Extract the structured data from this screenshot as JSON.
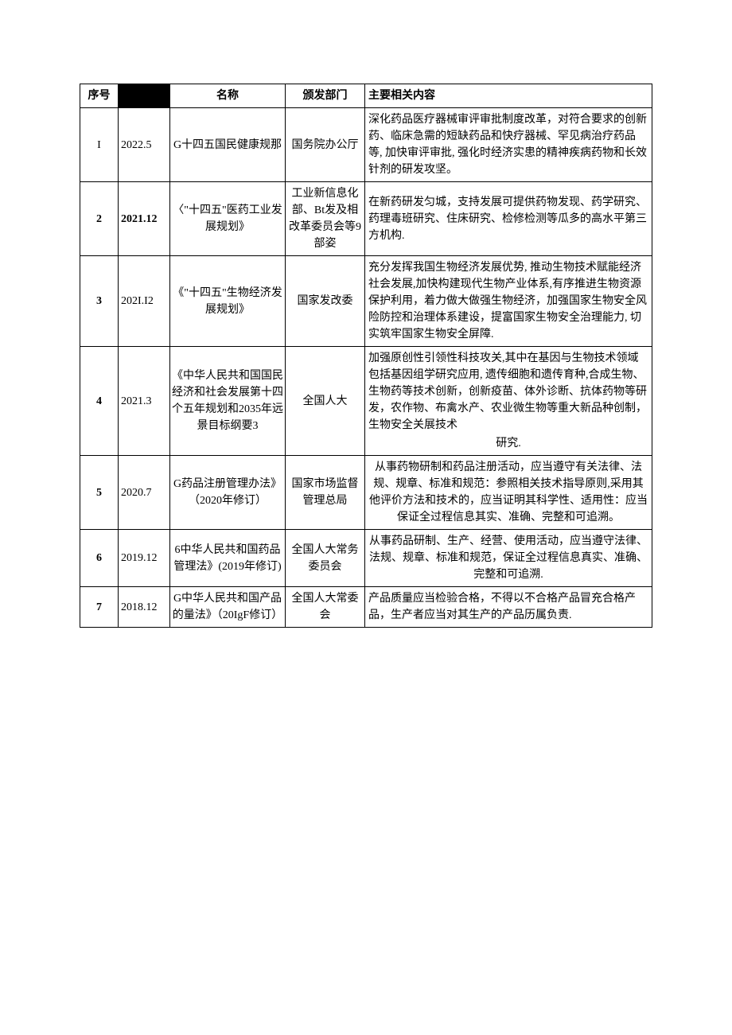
{
  "table": {
    "headers": {
      "seq": "序号",
      "date": "",
      "name": "名称",
      "dept": "颁发部门",
      "content": "主要相关内容"
    },
    "columns_widths": [
      48,
      65,
      145,
      100,
      360
    ],
    "border_color": "#000000",
    "font_family": "SimSun",
    "font_size": 14,
    "header_blacked_column_index": 1,
    "rows": [
      {
        "seq": "I",
        "seq_bold": false,
        "date": "2022.5",
        "date_bold": false,
        "name": "G十四五国民健康规那",
        "dept": "国务院办公厅",
        "content": "深化药品医疗器械审评审批制度改革，对符合要求的创新药、临床急需的短缺药品和快疗器械、罕见病治疗药品等, 加快审评审批, 强化时经济实患的精神疾病药物和长效针剂的研发攻坚。"
      },
      {
        "seq": "2",
        "seq_bold": true,
        "date": "2021.12",
        "date_bold": true,
        "name": "〈\"十四五\"医药工业发展规划》",
        "dept": "工业新信息化部、Bt发及相改革委员会等9部姿",
        "content": "在新药研发匀城，支持发展可提供药物发现、药学研究、药理毒班研究、住床研究、检修检测等瓜多的高水平第三方机构."
      },
      {
        "seq": "3",
        "seq_bold": true,
        "date": "202I.I2",
        "date_bold": false,
        "name": "《\"十四五\"生物经济发展规划》",
        "dept": "国家发改委",
        "content": "充分发挥我国生物经济发展优势, 推动生物技术赋能经济社会发展,加快构建现代生物产业体系,有序推进生物资源保护利用，着力做大做强生物经济，加强国家生物安全风险防控和治理体系建设，提富国家生物安全治理能力, 切实筑牢国家生物安全屏障."
      },
      {
        "seq": "4",
        "seq_bold": true,
        "date": "2021.3",
        "date_bold": false,
        "name": "《中华人民共和国国民经济和社会发展第十四个五年规划和2035年远景目标纲要3",
        "dept": "全国人大",
        "content": "加强原创性引领性科技攻关,其中在基因与生物技术领域包括基因组学研究应用, 遗传细胞和遗传育种,合成生物、生物药等技术创新，创新疫苗、体外诊断、抗体药物等研发，农作物、布禽水产、农业微生物等重大新品种创制，生物安全关展技术",
        "content_tail": "研究."
      },
      {
        "seq": "5",
        "seq_bold": true,
        "date": "2020.7",
        "date_bold": false,
        "name": "G药品注册管理办法》（2020年修订）",
        "dept": "国家市场监督管理总局",
        "content": "从事药物研制和药品注册活动，应当遵守有关法律、法规、规章、标准和规范：参照相关技术指导原则,采用其他评价方法和技术的，应当证明其科学性、适用性：应当保证全过程信息其实、准确、完整和可追溯。",
        "content_centered": true
      },
      {
        "seq": "6",
        "seq_bold": true,
        "date": "2019.12",
        "date_bold": false,
        "name": "6中华人民共和国药品管理法》(2019年修订)",
        "dept": "全国人大常务委员会",
        "content": "从事药品研制、生产、经营、使用活动，应当遵守法律、法规、规章、标准和规范，保证全过程信息真实、准确、完整和可追溯.",
        "content_centered": true
      },
      {
        "seq": "7",
        "seq_bold": true,
        "date": "2018.12",
        "date_bold": false,
        "name": "G中华人民共和国产品的量法》（20IgF修订）",
        "dept": "全国人大常委会",
        "content": "产品质量应当检验合格，不得以不合格产品冒充合格产品，生产者应当对其生产的产品历属负责."
      }
    ]
  }
}
